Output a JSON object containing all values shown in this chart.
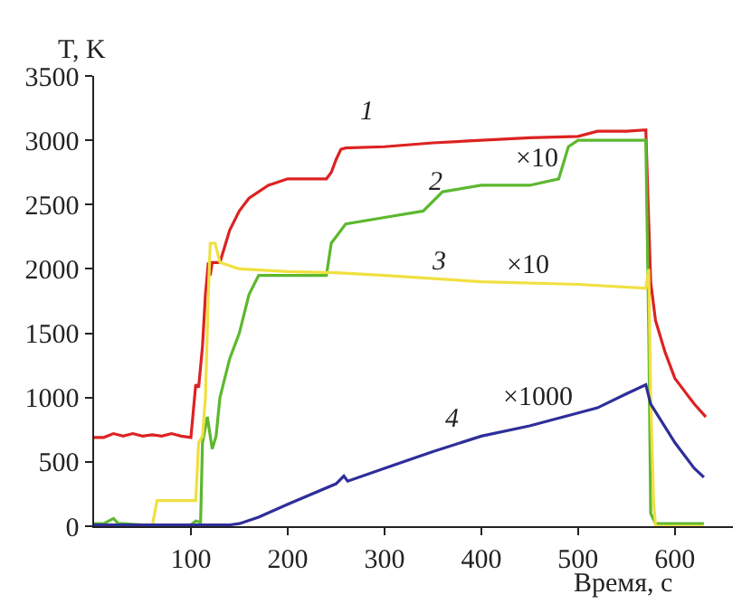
{
  "chart_data": {
    "type": "line",
    "xlabel": "Время, с",
    "ylabel": "T, K",
    "xlim": [
      0,
      660
    ],
    "xticks": [
      100,
      200,
      300,
      400,
      500,
      600
    ],
    "ylim": [
      0,
      3500
    ],
    "yticks": [
      0,
      500,
      1000,
      1500,
      2000,
      2500,
      3000,
      3500
    ],
    "grid": false,
    "legend": false,
    "marker": "none",
    "line_style": "solid",
    "series": [
      {
        "name": "1",
        "color": "#dd2222",
        "x": [
          0,
          10,
          20,
          30,
          40,
          50,
          60,
          70,
          80,
          90,
          100,
          105,
          108,
          112,
          115,
          118,
          120,
          122,
          125,
          130,
          140,
          150,
          160,
          180,
          200,
          220,
          240,
          245,
          250,
          255,
          260,
          300,
          350,
          400,
          450,
          500,
          520,
          550,
          570,
          572,
          575,
          580,
          590,
          600,
          610,
          620,
          632
        ],
        "values": [
          690,
          690,
          720,
          700,
          720,
          700,
          710,
          700,
          720,
          700,
          690,
          1100,
          1080,
          1400,
          1800,
          2050,
          1950,
          2050,
          2050,
          2050,
          2300,
          2450,
          2550,
          2650,
          2700,
          2700,
          2700,
          2750,
          2850,
          2930,
          2940,
          2950,
          2980,
          3000,
          3020,
          3030,
          3070,
          3070,
          3080,
          2600,
          1900,
          1600,
          1350,
          1150,
          1050,
          950,
          850
        ]
      },
      {
        "name": "2",
        "color": "#5cb82e",
        "x": [
          0,
          10,
          20,
          25,
          30,
          50,
          100,
          105,
          110,
          112,
          117,
          122,
          126,
          130,
          140,
          150,
          160,
          170,
          200,
          240,
          245,
          260,
          300,
          340,
          360,
          400,
          450,
          480,
          490,
          500,
          570,
          573,
          575,
          580,
          630
        ],
        "values": [
          20,
          20,
          60,
          20,
          20,
          10,
          10,
          40,
          30,
          650,
          850,
          600,
          700,
          1000,
          1300,
          1500,
          1800,
          1950,
          1950,
          1950,
          2200,
          2350,
          2400,
          2450,
          2600,
          2650,
          2650,
          2700,
          2950,
          3000,
          3000,
          1500,
          100,
          20,
          20
        ]
      },
      {
        "name": "3",
        "color": "#f0e040",
        "x": [
          0,
          60,
          65,
          105,
          108,
          112,
          115,
          118,
          120,
          125,
          130,
          150,
          200,
          250,
          300,
          400,
          500,
          570,
          573,
          575,
          578,
          580,
          630
        ],
        "values": [
          0,
          0,
          200,
          200,
          650,
          700,
          1000,
          1800,
          2200,
          2200,
          2050,
          2000,
          1980,
          1970,
          1950,
          1900,
          1880,
          1850,
          2000,
          1000,
          200,
          0,
          0
        ]
      },
      {
        "name": "4",
        "color": "#2e2e9a",
        "x": [
          0,
          140,
          150,
          170,
          200,
          250,
          258,
          262,
          300,
          350,
          400,
          450,
          500,
          520,
          550,
          570,
          575,
          600,
          620,
          630
        ],
        "values": [
          10,
          10,
          20,
          70,
          170,
          330,
          390,
          350,
          450,
          580,
          700,
          780,
          880,
          920,
          1030,
          1100,
          950,
          650,
          450,
          380
        ]
      }
    ],
    "annotations": [
      "×10",
      "×10",
      "×1000"
    ]
  }
}
